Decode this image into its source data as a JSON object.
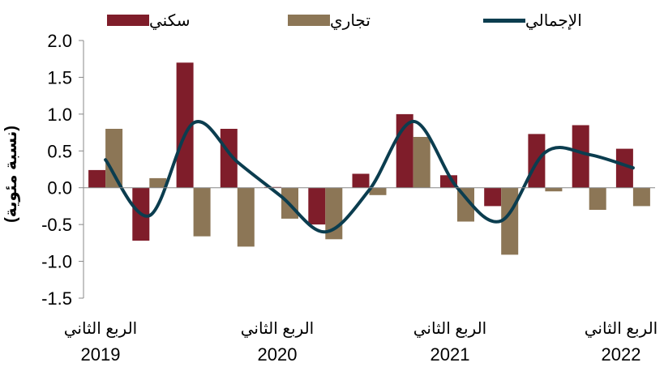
{
  "chart_data": {
    "type": "bar",
    "ylabel": "(نسبة مئوية)",
    "ylim": [
      -1.5,
      2.0
    ],
    "yticks": [
      -1.5,
      -1.0,
      -0.5,
      0.0,
      0.5,
      1.0,
      1.5,
      2.0
    ],
    "ytick_labels": [
      "-1.5",
      "-1.0",
      "-0.5",
      "0.0",
      "0.5",
      "1.0",
      "1.5",
      "2.0"
    ],
    "x_tick_labels": [
      {
        "quarter": "الربع الثاني",
        "year": "2019"
      },
      {
        "quarter": "الربع الثاني",
        "year": "2020"
      },
      {
        "quarter": "الربع الثاني",
        "year": "2021"
      },
      {
        "quarter": "الربع الثاني",
        "year": "2022"
      }
    ],
    "legend_position": "top",
    "series": [
      {
        "name": "سكني",
        "kind": "bar",
        "color": "#7f1d2a",
        "values": [
          0.24,
          -0.72,
          1.7,
          0.8,
          0.01,
          -0.5,
          0.19,
          1.0,
          0.17,
          -0.25,
          0.73,
          0.85,
          0.53
        ]
      },
      {
        "name": "تجاري",
        "kind": "bar",
        "color": "#8c7656",
        "values": [
          0.8,
          0.13,
          -0.66,
          -0.8,
          -0.42,
          -0.7,
          -0.1,
          0.69,
          -0.46,
          -0.91,
          -0.05,
          -0.3,
          -0.25
        ]
      },
      {
        "name": "الإجمالي",
        "kind": "line",
        "color": "#0b3d4f",
        "values": [
          0.38,
          -0.38,
          0.88,
          0.35,
          -0.12,
          -0.6,
          -0.03,
          0.9,
          0.0,
          -0.45,
          0.48,
          0.45,
          0.27
        ]
      }
    ]
  }
}
